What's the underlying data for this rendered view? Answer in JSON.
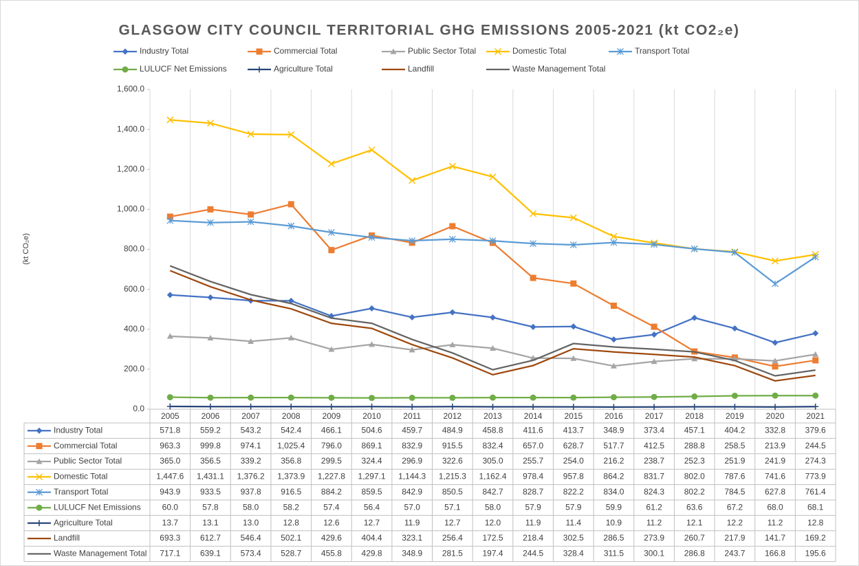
{
  "chart_data": {
    "type": "line",
    "title": "GLASGOW CITY COUNCIL TERRITORIAL GHG EMISSIONS 2005-2021 (kt CO2₂e)",
    "y_label": "(kt CO₂e)",
    "categories": [
      "2005",
      "2006",
      "2007",
      "2008",
      "2009",
      "2010",
      "2011",
      "2012",
      "2013",
      "2014",
      "2015",
      "2016",
      "2017",
      "2018",
      "2019",
      "2020",
      "2021"
    ],
    "ylim": [
      0,
      1600
    ],
    "yticks": [
      {
        "value": 0,
        "label": "0.0"
      },
      {
        "value": 200,
        "label": "200.0"
      },
      {
        "value": 400,
        "label": "400.0"
      },
      {
        "value": 600,
        "label": "600.0"
      },
      {
        "value": 800,
        "label": "800.0"
      },
      {
        "value": 1000,
        "label": "1,000.0"
      },
      {
        "value": 1200,
        "label": "1,200.0"
      },
      {
        "value": 1400,
        "label": "1,400.0"
      },
      {
        "value": 1600,
        "label": "1,600.0"
      }
    ],
    "series": [
      {
        "name": "Industry Total",
        "color": "#4472c4",
        "marker": "diamond",
        "values": [
          571.8,
          559.2,
          543.2,
          542.4,
          466.1,
          504.6,
          459.7,
          484.9,
          458.8,
          411.6,
          413.7,
          348.9,
          373.4,
          457.1,
          404.2,
          332.8,
          379.6
        ],
        "value_labels": [
          "571.8",
          "559.2",
          "543.2",
          "542.4",
          "466.1",
          "504.6",
          "459.7",
          "484.9",
          "458.8",
          "411.6",
          "413.7",
          "348.9",
          "373.4",
          "457.1",
          "404.2",
          "332.8",
          "379.6"
        ]
      },
      {
        "name": "Commercial Total",
        "color": "#ed7d31",
        "marker": "square",
        "values": [
          963.3,
          999.8,
          974.1,
          1025.4,
          796.0,
          869.1,
          832.9,
          915.5,
          832.4,
          657.0,
          628.7,
          517.7,
          412.5,
          288.8,
          258.5,
          213.9,
          244.5
        ],
        "value_labels": [
          "963.3",
          "999.8",
          "974.1",
          "1,025.4",
          "796.0",
          "869.1",
          "832.9",
          "915.5",
          "832.4",
          "657.0",
          "628.7",
          "517.7",
          "412.5",
          "288.8",
          "258.5",
          "213.9",
          "244.5"
        ]
      },
      {
        "name": "Public Sector Total",
        "color": "#a5a5a5",
        "marker": "triangle",
        "values": [
          365.0,
          356.5,
          339.2,
          356.8,
          299.5,
          324.4,
          296.9,
          322.6,
          305.0,
          255.7,
          254.0,
          216.2,
          238.7,
          252.3,
          251.9,
          241.9,
          274.3
        ],
        "value_labels": [
          "365.0",
          "356.5",
          "339.2",
          "356.8",
          "299.5",
          "324.4",
          "296.9",
          "322.6",
          "305.0",
          "255.7",
          "254.0",
          "216.2",
          "238.7",
          "252.3",
          "251.9",
          "241.9",
          "274.3"
        ]
      },
      {
        "name": "Domestic Total",
        "color": "#ffc000",
        "marker": "x",
        "values": [
          1447.6,
          1431.1,
          1376.2,
          1373.9,
          1227.8,
          1297.1,
          1144.3,
          1215.3,
          1162.4,
          978.4,
          957.8,
          864.2,
          831.7,
          802.0,
          787.6,
          741.6,
          773.9
        ],
        "value_labels": [
          "1,447.6",
          "1,431.1",
          "1,376.2",
          "1,373.9",
          "1,227.8",
          "1,297.1",
          "1,144.3",
          "1,215.3",
          "1,162.4",
          "978.4",
          "957.8",
          "864.2",
          "831.7",
          "802.0",
          "787.6",
          "741.6",
          "773.9"
        ]
      },
      {
        "name": "Transport Total",
        "color": "#5b9bd5",
        "marker": "asterisk",
        "values": [
          943.9,
          933.5,
          937.8,
          916.5,
          884.2,
          859.5,
          842.9,
          850.5,
          842.7,
          828.7,
          822.2,
          834.0,
          824.3,
          802.2,
          784.5,
          627.8,
          761.4
        ],
        "value_labels": [
          "943.9",
          "933.5",
          "937.8",
          "916.5",
          "884.2",
          "859.5",
          "842.9",
          "850.5",
          "842.7",
          "828.7",
          "822.2",
          "834.0",
          "824.3",
          "802.2",
          "784.5",
          "627.8",
          "761.4"
        ]
      },
      {
        "name": "LULUCF Net Emissions",
        "color": "#70ad47",
        "marker": "circle",
        "values": [
          60.0,
          57.8,
          58.0,
          58.2,
          57.4,
          56.4,
          57.0,
          57.1,
          58.0,
          57.9,
          57.9,
          59.9,
          61.2,
          63.6,
          67.2,
          68.0,
          68.1
        ],
        "value_labels": [
          "60.0",
          "57.8",
          "58.0",
          "58.2",
          "57.4",
          "56.4",
          "57.0",
          "57.1",
          "58.0",
          "57.9",
          "57.9",
          "59.9",
          "61.2",
          "63.6",
          "67.2",
          "68.0",
          "68.1"
        ]
      },
      {
        "name": "Agriculture Total",
        "color": "#264478",
        "marker": "plus",
        "values": [
          13.7,
          13.1,
          13.0,
          12.8,
          12.6,
          12.7,
          11.9,
          12.7,
          12.0,
          11.9,
          11.4,
          10.9,
          11.2,
          12.1,
          12.2,
          11.2,
          12.8
        ],
        "value_labels": [
          "13.7",
          "13.1",
          "13.0",
          "12.8",
          "12.6",
          "12.7",
          "11.9",
          "12.7",
          "12.0",
          "11.9",
          "11.4",
          "10.9",
          "11.2",
          "12.1",
          "12.2",
          "11.2",
          "12.8"
        ]
      },
      {
        "name": "Landfill",
        "color": "#9e480e",
        "values": [
          693.3,
          612.7,
          546.4,
          502.1,
          429.6,
          404.4,
          323.1,
          256.4,
          172.5,
          218.4,
          302.5,
          286.5,
          273.9,
          260.7,
          217.9,
          141.7,
          169.2
        ],
        "value_labels": [
          "693.3",
          "612.7",
          "546.4",
          "502.1",
          "429.6",
          "404.4",
          "323.1",
          "256.4",
          "172.5",
          "218.4",
          "302.5",
          "286.5",
          "273.9",
          "260.7",
          "217.9",
          "141.7",
          "169.2"
        ]
      },
      {
        "name": "Waste Management Total",
        "color": "#636363",
        "values": [
          717.1,
          639.1,
          573.4,
          528.7,
          455.8,
          429.8,
          348.9,
          281.5,
          197.4,
          244.5,
          328.4,
          311.5,
          300.1,
          286.8,
          243.7,
          166.8,
          195.6
        ],
        "value_labels": [
          "717.1",
          "639.1",
          "573.4",
          "528.7",
          "455.8",
          "429.8",
          "348.9",
          "281.5",
          "197.4",
          "244.5",
          "328.4",
          "311.5",
          "300.1",
          "286.8",
          "243.7",
          "166.8",
          "195.6"
        ]
      }
    ]
  }
}
